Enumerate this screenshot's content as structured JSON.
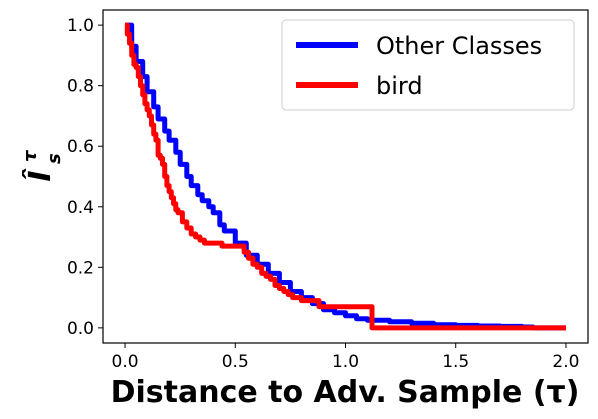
{
  "chart_data": {
    "type": "line",
    "title": "",
    "xlabel": "Distance to Adv. Sample (τ)",
    "ylabel": "Î",
    "ylabel_superscript": "τ",
    "ylabel_subscript": "s",
    "xlim": [
      -0.1,
      2.1
    ],
    "ylim": [
      -0.05,
      1.05
    ],
    "xticks": [
      0.0,
      0.5,
      1.0,
      1.5,
      2.0
    ],
    "xtick_labels": [
      "0.0",
      "0.5",
      "1.0",
      "1.5",
      "2.0"
    ],
    "yticks": [
      0.0,
      0.2,
      0.4,
      0.6,
      0.8,
      1.0
    ],
    "ytick_labels": [
      "0.0",
      "0.2",
      "0.4",
      "0.6",
      "0.8",
      "1.0"
    ],
    "grid": false,
    "legend_position": "top-right",
    "series": [
      {
        "name": "Other Classes",
        "color": "#0000ff",
        "x": [
          0.0,
          0.03,
          0.05,
          0.08,
          0.1,
          0.13,
          0.15,
          0.18,
          0.2,
          0.23,
          0.25,
          0.28,
          0.3,
          0.33,
          0.35,
          0.38,
          0.4,
          0.43,
          0.45,
          0.5,
          0.55,
          0.6,
          0.65,
          0.7,
          0.75,
          0.8,
          0.85,
          0.9,
          0.95,
          1.0,
          1.05,
          1.1,
          1.2,
          1.3,
          1.4,
          1.5,
          1.6,
          1.7,
          1.8,
          1.85,
          1.9,
          2.0
        ],
        "y": [
          1.0,
          0.93,
          0.88,
          0.83,
          0.78,
          0.73,
          0.69,
          0.65,
          0.62,
          0.58,
          0.54,
          0.5,
          0.47,
          0.44,
          0.42,
          0.4,
          0.38,
          0.34,
          0.32,
          0.28,
          0.24,
          0.21,
          0.18,
          0.15,
          0.12,
          0.1,
          0.08,
          0.06,
          0.05,
          0.04,
          0.03,
          0.025,
          0.02,
          0.015,
          0.01,
          0.008,
          0.006,
          0.005,
          0.003,
          0.0,
          0.0,
          0.0
        ]
      },
      {
        "name": "bird",
        "color": "#ff0000",
        "x": [
          0.0,
          0.01,
          0.02,
          0.03,
          0.04,
          0.05,
          0.06,
          0.07,
          0.08,
          0.09,
          0.1,
          0.11,
          0.12,
          0.13,
          0.14,
          0.15,
          0.16,
          0.17,
          0.18,
          0.19,
          0.2,
          0.21,
          0.22,
          0.23,
          0.24,
          0.25,
          0.26,
          0.28,
          0.3,
          0.32,
          0.34,
          0.36,
          0.38,
          0.4,
          0.42,
          0.44,
          0.46,
          0.5,
          0.54,
          0.56,
          0.58,
          0.6,
          0.62,
          0.64,
          0.66,
          0.68,
          0.7,
          0.72,
          0.74,
          0.76,
          0.8,
          0.84,
          0.88,
          0.92,
          1.0,
          1.06,
          1.1,
          1.12,
          1.2,
          1.4,
          1.6,
          1.8,
          2.0
        ],
        "y": [
          1.0,
          0.97,
          0.94,
          0.9,
          0.87,
          0.86,
          0.83,
          0.8,
          0.77,
          0.74,
          0.72,
          0.7,
          0.67,
          0.64,
          0.62,
          0.57,
          0.56,
          0.54,
          0.5,
          0.47,
          0.45,
          0.43,
          0.41,
          0.39,
          0.38,
          0.38,
          0.35,
          0.33,
          0.31,
          0.3,
          0.29,
          0.28,
          0.28,
          0.28,
          0.28,
          0.27,
          0.27,
          0.27,
          0.25,
          0.23,
          0.21,
          0.2,
          0.18,
          0.17,
          0.16,
          0.14,
          0.13,
          0.12,
          0.11,
          0.1,
          0.09,
          0.09,
          0.07,
          0.07,
          0.07,
          0.07,
          0.07,
          0.0,
          0.0,
          0.0,
          0.0,
          0.0,
          0.0
        ]
      }
    ]
  }
}
